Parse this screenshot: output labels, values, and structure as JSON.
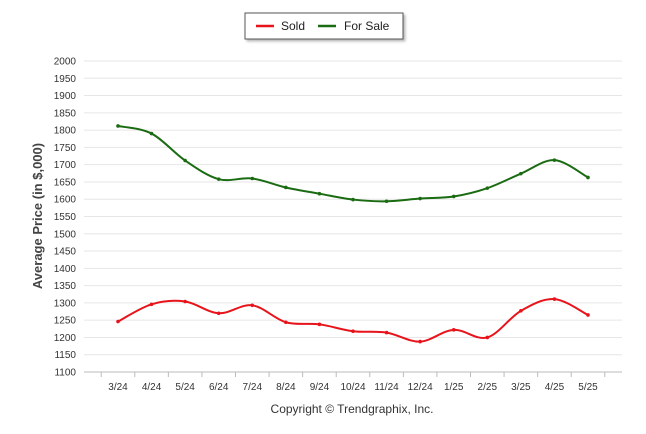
{
  "chart_data": {
    "type": "line",
    "title": "",
    "xlabel": "",
    "ylabel": "Average Price (in $,000)",
    "categories": [
      "3/24",
      "4/24",
      "5/24",
      "6/24",
      "7/24",
      "8/24",
      "9/24",
      "10/24",
      "11/24",
      "12/24",
      "1/25",
      "2/25",
      "3/25",
      "4/25",
      "5/25"
    ],
    "ylim": [
      1100,
      2000
    ],
    "yticks": [
      1100,
      1150,
      1200,
      1250,
      1300,
      1350,
      1400,
      1450,
      1500,
      1550,
      1600,
      1650,
      1700,
      1750,
      1800,
      1850,
      1900,
      1950,
      2000
    ],
    "grid": true,
    "legend_position": "top-center",
    "series": [
      {
        "name": "Sold",
        "color": "#e8141b",
        "values": [
          1246,
          1296,
          1304,
          1270,
          1293,
          1244,
          1238,
          1218,
          1214,
          1188,
          1222,
          1200,
          1277,
          1311,
          1265
        ]
      },
      {
        "name": "For Sale",
        "color": "#1a6b12",
        "values": [
          1812,
          1790,
          1712,
          1658,
          1660,
          1634,
          1616,
          1599,
          1594,
          1602,
          1608,
          1632,
          1674,
          1713,
          1663
        ]
      }
    ]
  },
  "footer": {
    "copyright": "Copyright © Trendgraphix, Inc."
  }
}
